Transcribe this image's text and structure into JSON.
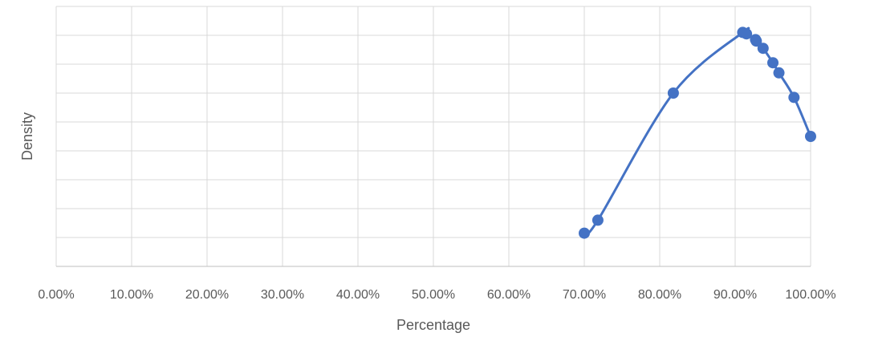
{
  "chart_data": {
    "type": "scatter",
    "title": "",
    "xlabel": "Percentage",
    "ylabel": "Density",
    "xlim": [
      0,
      1
    ],
    "ylim": [
      0,
      9
    ],
    "x_tick_labels": [
      "0.00%",
      "10.00%",
      "20.00%",
      "30.00%",
      "40.00%",
      "50.00%",
      "60.00%",
      "70.00%",
      "80.00%",
      "90.00%",
      "100.00%"
    ],
    "x_ticks": [
      0,
      0.1,
      0.2,
      0.3,
      0.4,
      0.5,
      0.6,
      0.7,
      0.8,
      0.9,
      1.0
    ],
    "y_gridlines": [
      1,
      2,
      3,
      4,
      5,
      6,
      7,
      8,
      9
    ],
    "y_tick_labels_shown": false,
    "grid": true,
    "legend": "none",
    "smoothed_line": true,
    "series": [
      {
        "color": "#4472c4",
        "x": [
          0.7,
          0.718,
          0.818,
          0.91,
          0.915,
          0.927,
          0.928,
          0.937,
          0.95,
          0.958,
          0.978,
          1.0
        ],
        "y": [
          1.15,
          1.6,
          6.0,
          8.1,
          8.05,
          7.85,
          7.8,
          7.55,
          7.05,
          6.7,
          5.85,
          4.5
        ]
      }
    ]
  }
}
